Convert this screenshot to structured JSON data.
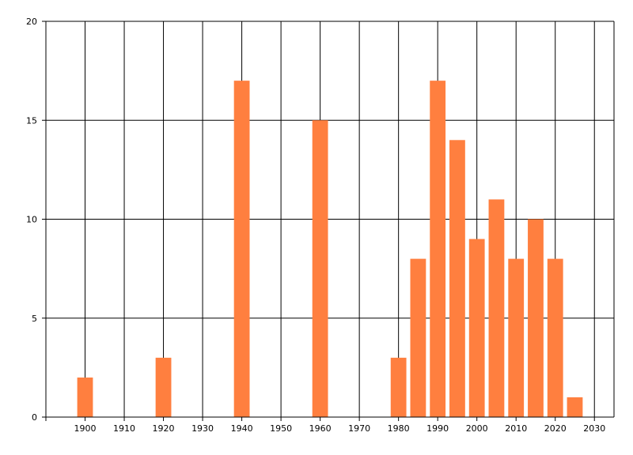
{
  "chart_data": {
    "type": "bar",
    "x": [
      1900,
      1920,
      1940,
      1960,
      1980,
      1985,
      1990,
      1995,
      2000,
      2005,
      2010,
      2015,
      2020,
      2025
    ],
    "values": [
      2,
      3,
      17,
      15,
      3,
      8,
      17,
      14,
      9,
      11,
      8,
      10,
      8,
      1
    ],
    "xticks": [
      1900,
      1910,
      1920,
      1930,
      1940,
      1950,
      1960,
      1970,
      1980,
      1990,
      2000,
      2010,
      2020,
      2030
    ],
    "yticks": [
      0,
      5,
      10,
      15,
      20
    ],
    "xlim": [
      1890,
      2035
    ],
    "ylim": [
      0,
      20
    ],
    "title": "",
    "xlabel": "",
    "ylabel": "",
    "grid": true,
    "bar_color": "#FF7F3F"
  }
}
